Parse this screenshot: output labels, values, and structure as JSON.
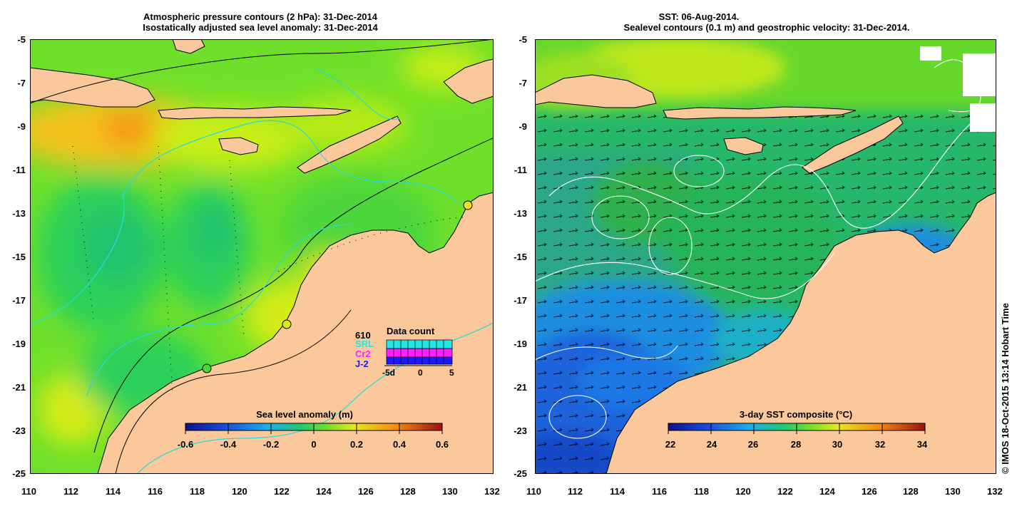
{
  "left_panel": {
    "title_line1": "Atmospheric pressure contours (2 hPa): 31-Dec-2014",
    "title_line2": "Isostatically adjusted sea level anomaly: 31-Dec-2014",
    "colorbar_label": "Sea level anomaly (m)",
    "colorbar_ticks": [
      "-0.6",
      "-0.4",
      "-0.2",
      "0",
      "0.2",
      "0.4",
      "0.6"
    ],
    "data_count": {
      "title": "Data count",
      "total": "610",
      "satellites": [
        "SRL",
        "Cr2",
        "J-2"
      ],
      "satellite_colors": [
        "#22e5e5",
        "#ff1fff",
        "#1a1aff"
      ],
      "axis_ticks": [
        "-5d",
        "0",
        "5"
      ]
    }
  },
  "right_panel": {
    "title_line1": "SST: 06-Aug-2014.",
    "title_line2": "Sealevel contours (0.1 m) and geostrophic velocity: 31-Dec-2014.",
    "colorbar_label": "3-day SST composite (°C)",
    "colorbar_ticks": [
      "22",
      "24",
      "26",
      "28",
      "30",
      "32",
      "34"
    ]
  },
  "axes": {
    "lat_ticks": [
      "-5",
      "-7",
      "-9",
      "-11",
      "-13",
      "-15",
      "-17",
      "-19",
      "-21",
      "-23",
      "-25"
    ],
    "lon_ticks": [
      "110",
      "112",
      "114",
      "116",
      "118",
      "120",
      "122",
      "124",
      "126",
      "128",
      "130",
      "132"
    ]
  },
  "copyright": "© IMOS 18-Oct-2015 13:14 Hobart Time",
  "colors": {
    "land": "#fac89b",
    "sla_mid": "#2fd22f",
    "sst_cool": "#1a6fe0"
  }
}
